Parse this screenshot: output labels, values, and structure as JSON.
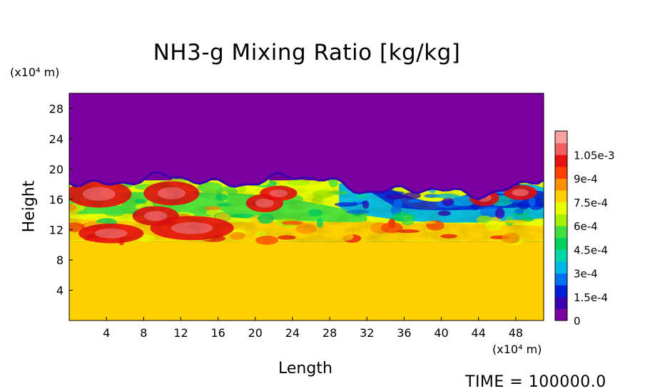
{
  "chart_data": {
    "type": "heatmap",
    "title": "NH3-g Mixing Ratio [kg/kg]",
    "xlabel": "Length",
    "ylabel": "Height",
    "x_unit": "(x10⁴ m)",
    "y_unit": "(x10⁴ m)",
    "x_ticks": [
      4,
      8,
      12,
      16,
      20,
      24,
      28,
      32,
      36,
      40,
      44,
      48
    ],
    "y_ticks": [
      4,
      8,
      12,
      16,
      20,
      24,
      28
    ],
    "xlim": [
      0,
      51
    ],
    "ylim": [
      0,
      30
    ],
    "colorbar": {
      "labels": [
        "1.05e-3",
        "9e-4",
        "7.5e-4",
        "6e-4",
        "4.5e-4",
        "3e-4",
        "1.5e-4",
        "0"
      ],
      "label_values": [
        0.00105,
        0.0009,
        0.00075,
        0.0006,
        0.00045,
        0.0003,
        0.00015,
        0
      ],
      "range": [
        0,
        0.0012
      ],
      "colors": [
        "#7a00a0",
        "#3a00b0",
        "#0020d8",
        "#0070f0",
        "#00b8e8",
        "#00d8a8",
        "#00d060",
        "#40e040",
        "#a8f000",
        "#e8ff00",
        "#ffd000",
        "#ff9000",
        "#ff4000",
        "#e81010",
        "#f06060",
        "#f8a0a0"
      ]
    },
    "regions": {
      "lower_layer": {
        "height_range": [
          0,
          10.5
        ],
        "value": 0.00078
      },
      "mixed_layer": {
        "height_range": [
          10.5,
          18.5
        ],
        "value_range": [
          0.0002,
          0.00105
        ]
      },
      "upper_layer": {
        "height_range": [
          18.5,
          30
        ],
        "value": 0
      }
    }
  },
  "footer": {
    "time_label": "TIME = 100000.0"
  }
}
